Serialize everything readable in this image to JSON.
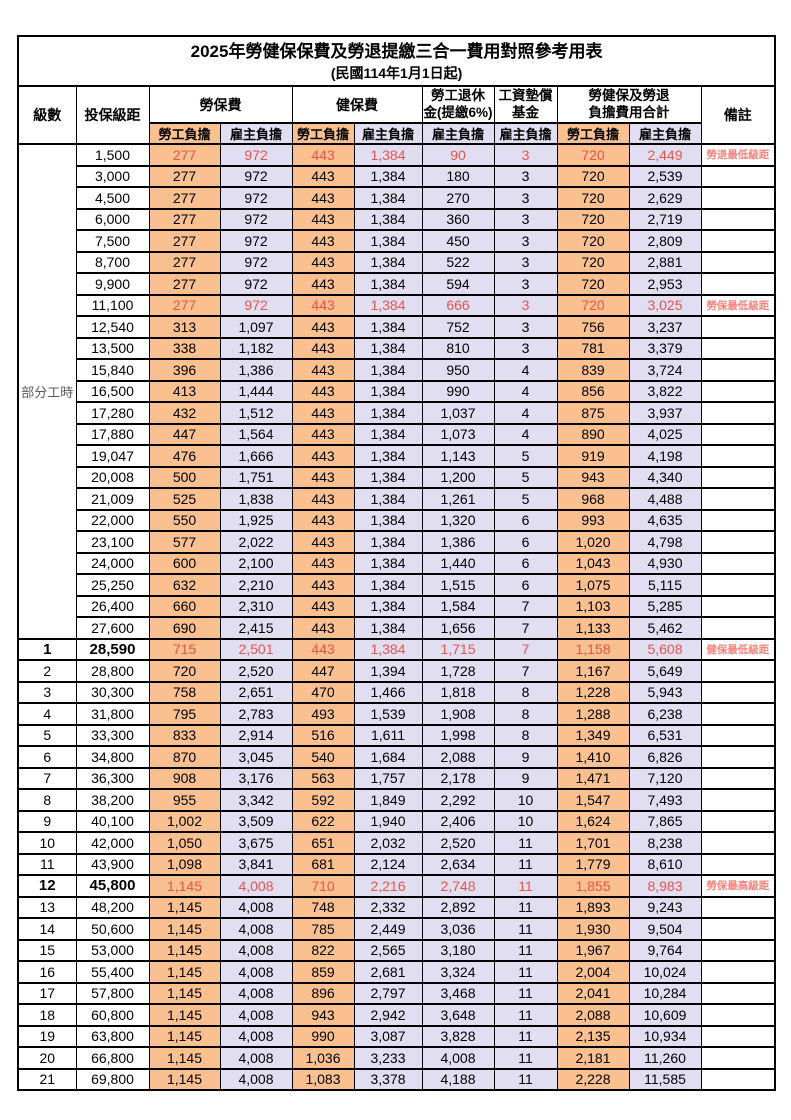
{
  "title": "2025年勞健保保費及勞退提繳三合一費用對照參考用表",
  "subtitle": "(民國114年1月1日起)",
  "colors": {
    "employee_col_bg": "#FAC090",
    "employer_col_bg": "#E0DEF0",
    "highlight_value_text": "#E8554D",
    "remark_text": "#F9837D"
  },
  "header": {
    "level": "級數",
    "bracket": "投保級距",
    "labor_ins": "勞保費",
    "health_ins": "健保費",
    "pension_l1": "勞工退休",
    "pension_l2": "金(提繳6%)",
    "wage_fund_l1": "工資墊償",
    "wage_fund_l2": "基金",
    "total_l1": "勞健保及勞退",
    "total_l2": "負擔費用合計",
    "remark": "備註",
    "employee": "勞工負擔",
    "employer": "雇主負擔"
  },
  "part_time_label": "部分工時",
  "rows": [
    {
      "c": [
        "",
        "1,500",
        "277",
        "972",
        "443",
        "1,384",
        "90",
        "3",
        "720",
        "2,449",
        "勞退最低級距"
      ],
      "red": true
    },
    {
      "c": [
        "",
        "3,000",
        "277",
        "972",
        "443",
        "1,384",
        "180",
        "3",
        "720",
        "2,539",
        ""
      ]
    },
    {
      "c": [
        "",
        "4,500",
        "277",
        "972",
        "443",
        "1,384",
        "270",
        "3",
        "720",
        "2,629",
        ""
      ]
    },
    {
      "c": [
        "",
        "6,000",
        "277",
        "972",
        "443",
        "1,384",
        "360",
        "3",
        "720",
        "2,719",
        ""
      ]
    },
    {
      "c": [
        "",
        "7,500",
        "277",
        "972",
        "443",
        "1,384",
        "450",
        "3",
        "720",
        "2,809",
        ""
      ]
    },
    {
      "c": [
        "",
        "8,700",
        "277",
        "972",
        "443",
        "1,384",
        "522",
        "3",
        "720",
        "2,881",
        ""
      ]
    },
    {
      "c": [
        "",
        "9,900",
        "277",
        "972",
        "443",
        "1,384",
        "594",
        "3",
        "720",
        "2,953",
        ""
      ]
    },
    {
      "c": [
        "",
        "11,100",
        "277",
        "972",
        "443",
        "1,384",
        "666",
        "3",
        "720",
        "3,025",
        "勞保最低級距"
      ],
      "red": true
    },
    {
      "c": [
        "",
        "12,540",
        "313",
        "1,097",
        "443",
        "1,384",
        "752",
        "3",
        "756",
        "3,237",
        ""
      ]
    },
    {
      "c": [
        "",
        "13,500",
        "338",
        "1,182",
        "443",
        "1,384",
        "810",
        "3",
        "781",
        "3,379",
        ""
      ]
    },
    {
      "c": [
        "",
        "15,840",
        "396",
        "1,386",
        "443",
        "1,384",
        "950",
        "4",
        "839",
        "3,724",
        ""
      ]
    },
    {
      "c": [
        "",
        "16,500",
        "413",
        "1,444",
        "443",
        "1,384",
        "990",
        "4",
        "856",
        "3,822",
        ""
      ]
    },
    {
      "c": [
        "",
        "17,280",
        "432",
        "1,512",
        "443",
        "1,384",
        "1,037",
        "4",
        "875",
        "3,937",
        ""
      ]
    },
    {
      "c": [
        "",
        "17,880",
        "447",
        "1,564",
        "443",
        "1,384",
        "1,073",
        "4",
        "890",
        "4,025",
        ""
      ]
    },
    {
      "c": [
        "",
        "19,047",
        "476",
        "1,666",
        "443",
        "1,384",
        "1,143",
        "5",
        "919",
        "4,198",
        ""
      ]
    },
    {
      "c": [
        "",
        "20,008",
        "500",
        "1,751",
        "443",
        "1,384",
        "1,200",
        "5",
        "943",
        "4,340",
        ""
      ]
    },
    {
      "c": [
        "",
        "21,009",
        "525",
        "1,838",
        "443",
        "1,384",
        "1,261",
        "5",
        "968",
        "4,488",
        ""
      ]
    },
    {
      "c": [
        "",
        "22,000",
        "550",
        "1,925",
        "443",
        "1,384",
        "1,320",
        "6",
        "993",
        "4,635",
        ""
      ]
    },
    {
      "c": [
        "",
        "23,100",
        "577",
        "2,022",
        "443",
        "1,384",
        "1,386",
        "6",
        "1,020",
        "4,798",
        ""
      ]
    },
    {
      "c": [
        "",
        "24,000",
        "600",
        "2,100",
        "443",
        "1,384",
        "1,440",
        "6",
        "1,043",
        "4,930",
        ""
      ]
    },
    {
      "c": [
        "",
        "25,250",
        "632",
        "2,210",
        "443",
        "1,384",
        "1,515",
        "6",
        "1,075",
        "5,115",
        ""
      ]
    },
    {
      "c": [
        "",
        "26,400",
        "660",
        "2,310",
        "443",
        "1,384",
        "1,584",
        "7",
        "1,103",
        "5,285",
        ""
      ]
    },
    {
      "c": [
        "",
        "27,600",
        "690",
        "2,415",
        "443",
        "1,384",
        "1,656",
        "7",
        "1,133",
        "5,462",
        ""
      ]
    },
    {
      "c": [
        "1",
        "28,590",
        "715",
        "2,501",
        "443",
        "1,384",
        "1,715",
        "7",
        "1,158",
        "5,608",
        "健保最低級距"
      ],
      "red": true,
      "hl": true
    },
    {
      "c": [
        "2",
        "28,800",
        "720",
        "2,520",
        "447",
        "1,394",
        "1,728",
        "7",
        "1,167",
        "5,649",
        ""
      ]
    },
    {
      "c": [
        "3",
        "30,300",
        "758",
        "2,651",
        "470",
        "1,466",
        "1,818",
        "8",
        "1,228",
        "5,943",
        ""
      ]
    },
    {
      "c": [
        "4",
        "31,800",
        "795",
        "2,783",
        "493",
        "1,539",
        "1,908",
        "8",
        "1,288",
        "6,238",
        ""
      ]
    },
    {
      "c": [
        "5",
        "33,300",
        "833",
        "2,914",
        "516",
        "1,611",
        "1,998",
        "8",
        "1,349",
        "6,531",
        ""
      ]
    },
    {
      "c": [
        "6",
        "34,800",
        "870",
        "3,045",
        "540",
        "1,684",
        "2,088",
        "9",
        "1,410",
        "6,826",
        ""
      ]
    },
    {
      "c": [
        "7",
        "36,300",
        "908",
        "3,176",
        "563",
        "1,757",
        "2,178",
        "9",
        "1,471",
        "7,120",
        ""
      ]
    },
    {
      "c": [
        "8",
        "38,200",
        "955",
        "3,342",
        "592",
        "1,849",
        "2,292",
        "10",
        "1,547",
        "7,493",
        ""
      ]
    },
    {
      "c": [
        "9",
        "40,100",
        "1,002",
        "3,509",
        "622",
        "1,940",
        "2,406",
        "10",
        "1,624",
        "7,865",
        ""
      ]
    },
    {
      "c": [
        "10",
        "42,000",
        "1,050",
        "3,675",
        "651",
        "2,032",
        "2,520",
        "11",
        "1,701",
        "8,238",
        ""
      ]
    },
    {
      "c": [
        "11",
        "43,900",
        "1,098",
        "3,841",
        "681",
        "2,124",
        "2,634",
        "11",
        "1,779",
        "8,610",
        ""
      ]
    },
    {
      "c": [
        "12",
        "45,800",
        "1,145",
        "4,008",
        "710",
        "2,216",
        "2,748",
        "11",
        "1,855",
        "8,983",
        "勞保最高級距"
      ],
      "red": true,
      "hl": true
    },
    {
      "c": [
        "13",
        "48,200",
        "1,145",
        "4,008",
        "748",
        "2,332",
        "2,892",
        "11",
        "1,893",
        "9,243",
        ""
      ]
    },
    {
      "c": [
        "14",
        "50,600",
        "1,145",
        "4,008",
        "785",
        "2,449",
        "3,036",
        "11",
        "1,930",
        "9,504",
        ""
      ]
    },
    {
      "c": [
        "15",
        "53,000",
        "1,145",
        "4,008",
        "822",
        "2,565",
        "3,180",
        "11",
        "1,967",
        "9,764",
        ""
      ]
    },
    {
      "c": [
        "16",
        "55,400",
        "1,145",
        "4,008",
        "859",
        "2,681",
        "3,324",
        "11",
        "2,004",
        "10,024",
        ""
      ]
    },
    {
      "c": [
        "17",
        "57,800",
        "1,145",
        "4,008",
        "896",
        "2,797",
        "3,468",
        "11",
        "2,041",
        "10,284",
        ""
      ]
    },
    {
      "c": [
        "18",
        "60,800",
        "1,145",
        "4,008",
        "943",
        "2,942",
        "3,648",
        "11",
        "2,088",
        "10,609",
        ""
      ]
    },
    {
      "c": [
        "19",
        "63,800",
        "1,145",
        "4,008",
        "990",
        "3,087",
        "3,828",
        "11",
        "2,135",
        "10,934",
        ""
      ]
    },
    {
      "c": [
        "20",
        "66,800",
        "1,145",
        "4,008",
        "1,036",
        "3,233",
        "4,008",
        "11",
        "2,181",
        "11,260",
        ""
      ]
    },
    {
      "c": [
        "21",
        "69,800",
        "1,145",
        "4,008",
        "1,083",
        "3,378",
        "4,188",
        "11",
        "2,228",
        "11,585",
        ""
      ]
    }
  ]
}
